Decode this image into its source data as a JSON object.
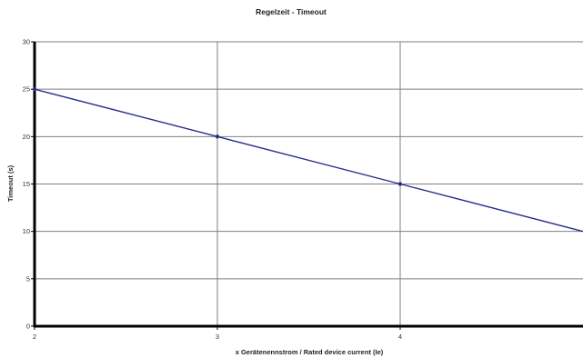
{
  "chart_data": {
    "type": "line",
    "title": "Regelzeit - Timeout",
    "xlabel": "x Gerätenennstrom / Rated device current (Ie)",
    "ylabel": "Timeout (s)",
    "xlim": [
      2,
      5
    ],
    "ylim": [
      0,
      30
    ],
    "x_ticks": [
      2,
      3,
      4
    ],
    "y_ticks": [
      0,
      5,
      10,
      15,
      20,
      25,
      30
    ],
    "grid": true,
    "legend": "none",
    "series": [
      {
        "points": [
          [
            2,
            25
          ],
          [
            3,
            20
          ],
          [
            4,
            15
          ],
          [
            5,
            10
          ]
        ],
        "markers_at": [
          2,
          3,
          4
        ],
        "color": "#2b2f8c"
      }
    ],
    "colors": {
      "axis": "#000000",
      "grid": "#7f7f7f",
      "background": "#ffffff"
    }
  }
}
